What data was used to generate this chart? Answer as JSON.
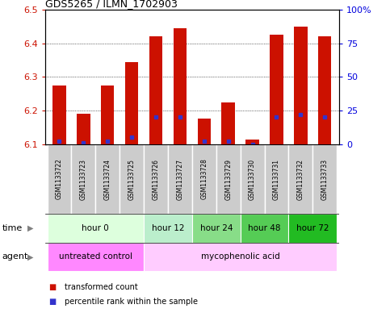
{
  "title": "GDS5265 / ILMN_1702903",
  "samples": [
    "GSM1133722",
    "GSM1133723",
    "GSM1133724",
    "GSM1133725",
    "GSM1133726",
    "GSM1133727",
    "GSM1133728",
    "GSM1133729",
    "GSM1133730",
    "GSM1133731",
    "GSM1133732",
    "GSM1133733"
  ],
  "transformed_count": [
    6.275,
    6.19,
    6.275,
    6.345,
    6.42,
    6.445,
    6.175,
    6.225,
    6.115,
    6.425,
    6.45,
    6.42
  ],
  "percentile_rank": [
    2,
    1,
    2,
    5,
    20,
    20,
    2,
    2,
    0,
    20,
    22,
    20
  ],
  "ylim_left": [
    6.1,
    6.5
  ],
  "ylim_right": [
    0,
    100
  ],
  "yticks_left": [
    6.1,
    6.2,
    6.3,
    6.4,
    6.5
  ],
  "yticks_right": [
    0,
    25,
    50,
    75,
    100
  ],
  "ytick_labels_right": [
    "0",
    "25",
    "50",
    "75",
    "100%"
  ],
  "bar_color": "#cc1100",
  "percentile_color": "#3333cc",
  "time_colors": [
    "#ddffdd",
    "#bbeecc",
    "#88dd88",
    "#55cc55",
    "#22bb22"
  ],
  "agent_colors": [
    "#ff88ff",
    "#ffccff"
  ],
  "time_groups": [
    {
      "label": "hour 0",
      "start": 0,
      "end": 4
    },
    {
      "label": "hour 12",
      "start": 4,
      "end": 6
    },
    {
      "label": "hour 24",
      "start": 6,
      "end": 8
    },
    {
      "label": "hour 48",
      "start": 8,
      "end": 10
    },
    {
      "label": "hour 72",
      "start": 10,
      "end": 12
    }
  ],
  "agent_groups": [
    {
      "label": "untreated control",
      "start": 0,
      "end": 4
    },
    {
      "label": "mycophenolic acid",
      "start": 4,
      "end": 12
    }
  ],
  "legend_items": [
    {
      "label": "transformed count",
      "color": "#cc1100"
    },
    {
      "label": "percentile rank within the sample",
      "color": "#3333cc"
    }
  ],
  "base_value": 6.1
}
